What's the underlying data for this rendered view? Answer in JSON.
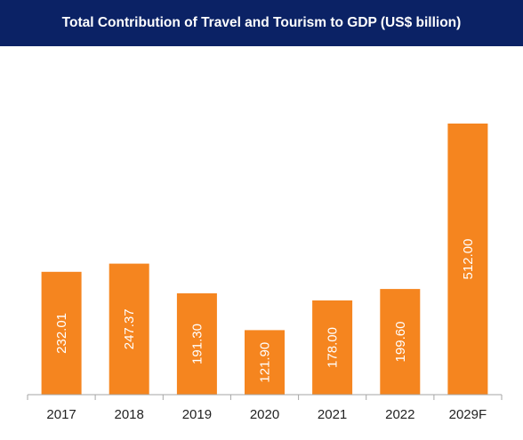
{
  "chart_data": {
    "type": "bar",
    "title": "Total Contribution of Travel and Tourism to GDP (US$ billion)",
    "categories": [
      "2017",
      "2018",
      "2019",
      "2020",
      "2021",
      "2022",
      "2029F"
    ],
    "values": [
      232.01,
      247.37,
      191.3,
      121.9,
      178.0,
      199.6,
      512.0
    ],
    "value_labels": [
      "232.01",
      "247.37",
      "191.30",
      "121.90",
      "178.00",
      "199.60",
      "512.00"
    ],
    "xlabel": "",
    "ylabel": "",
    "ylim": [
      0,
      515
    ],
    "grid": false,
    "legend": "none",
    "colors": {
      "bar": "#f5851f",
      "title_background": "#0b2265",
      "title_text": "#ffffff",
      "axis": "#a6a6a6"
    }
  }
}
